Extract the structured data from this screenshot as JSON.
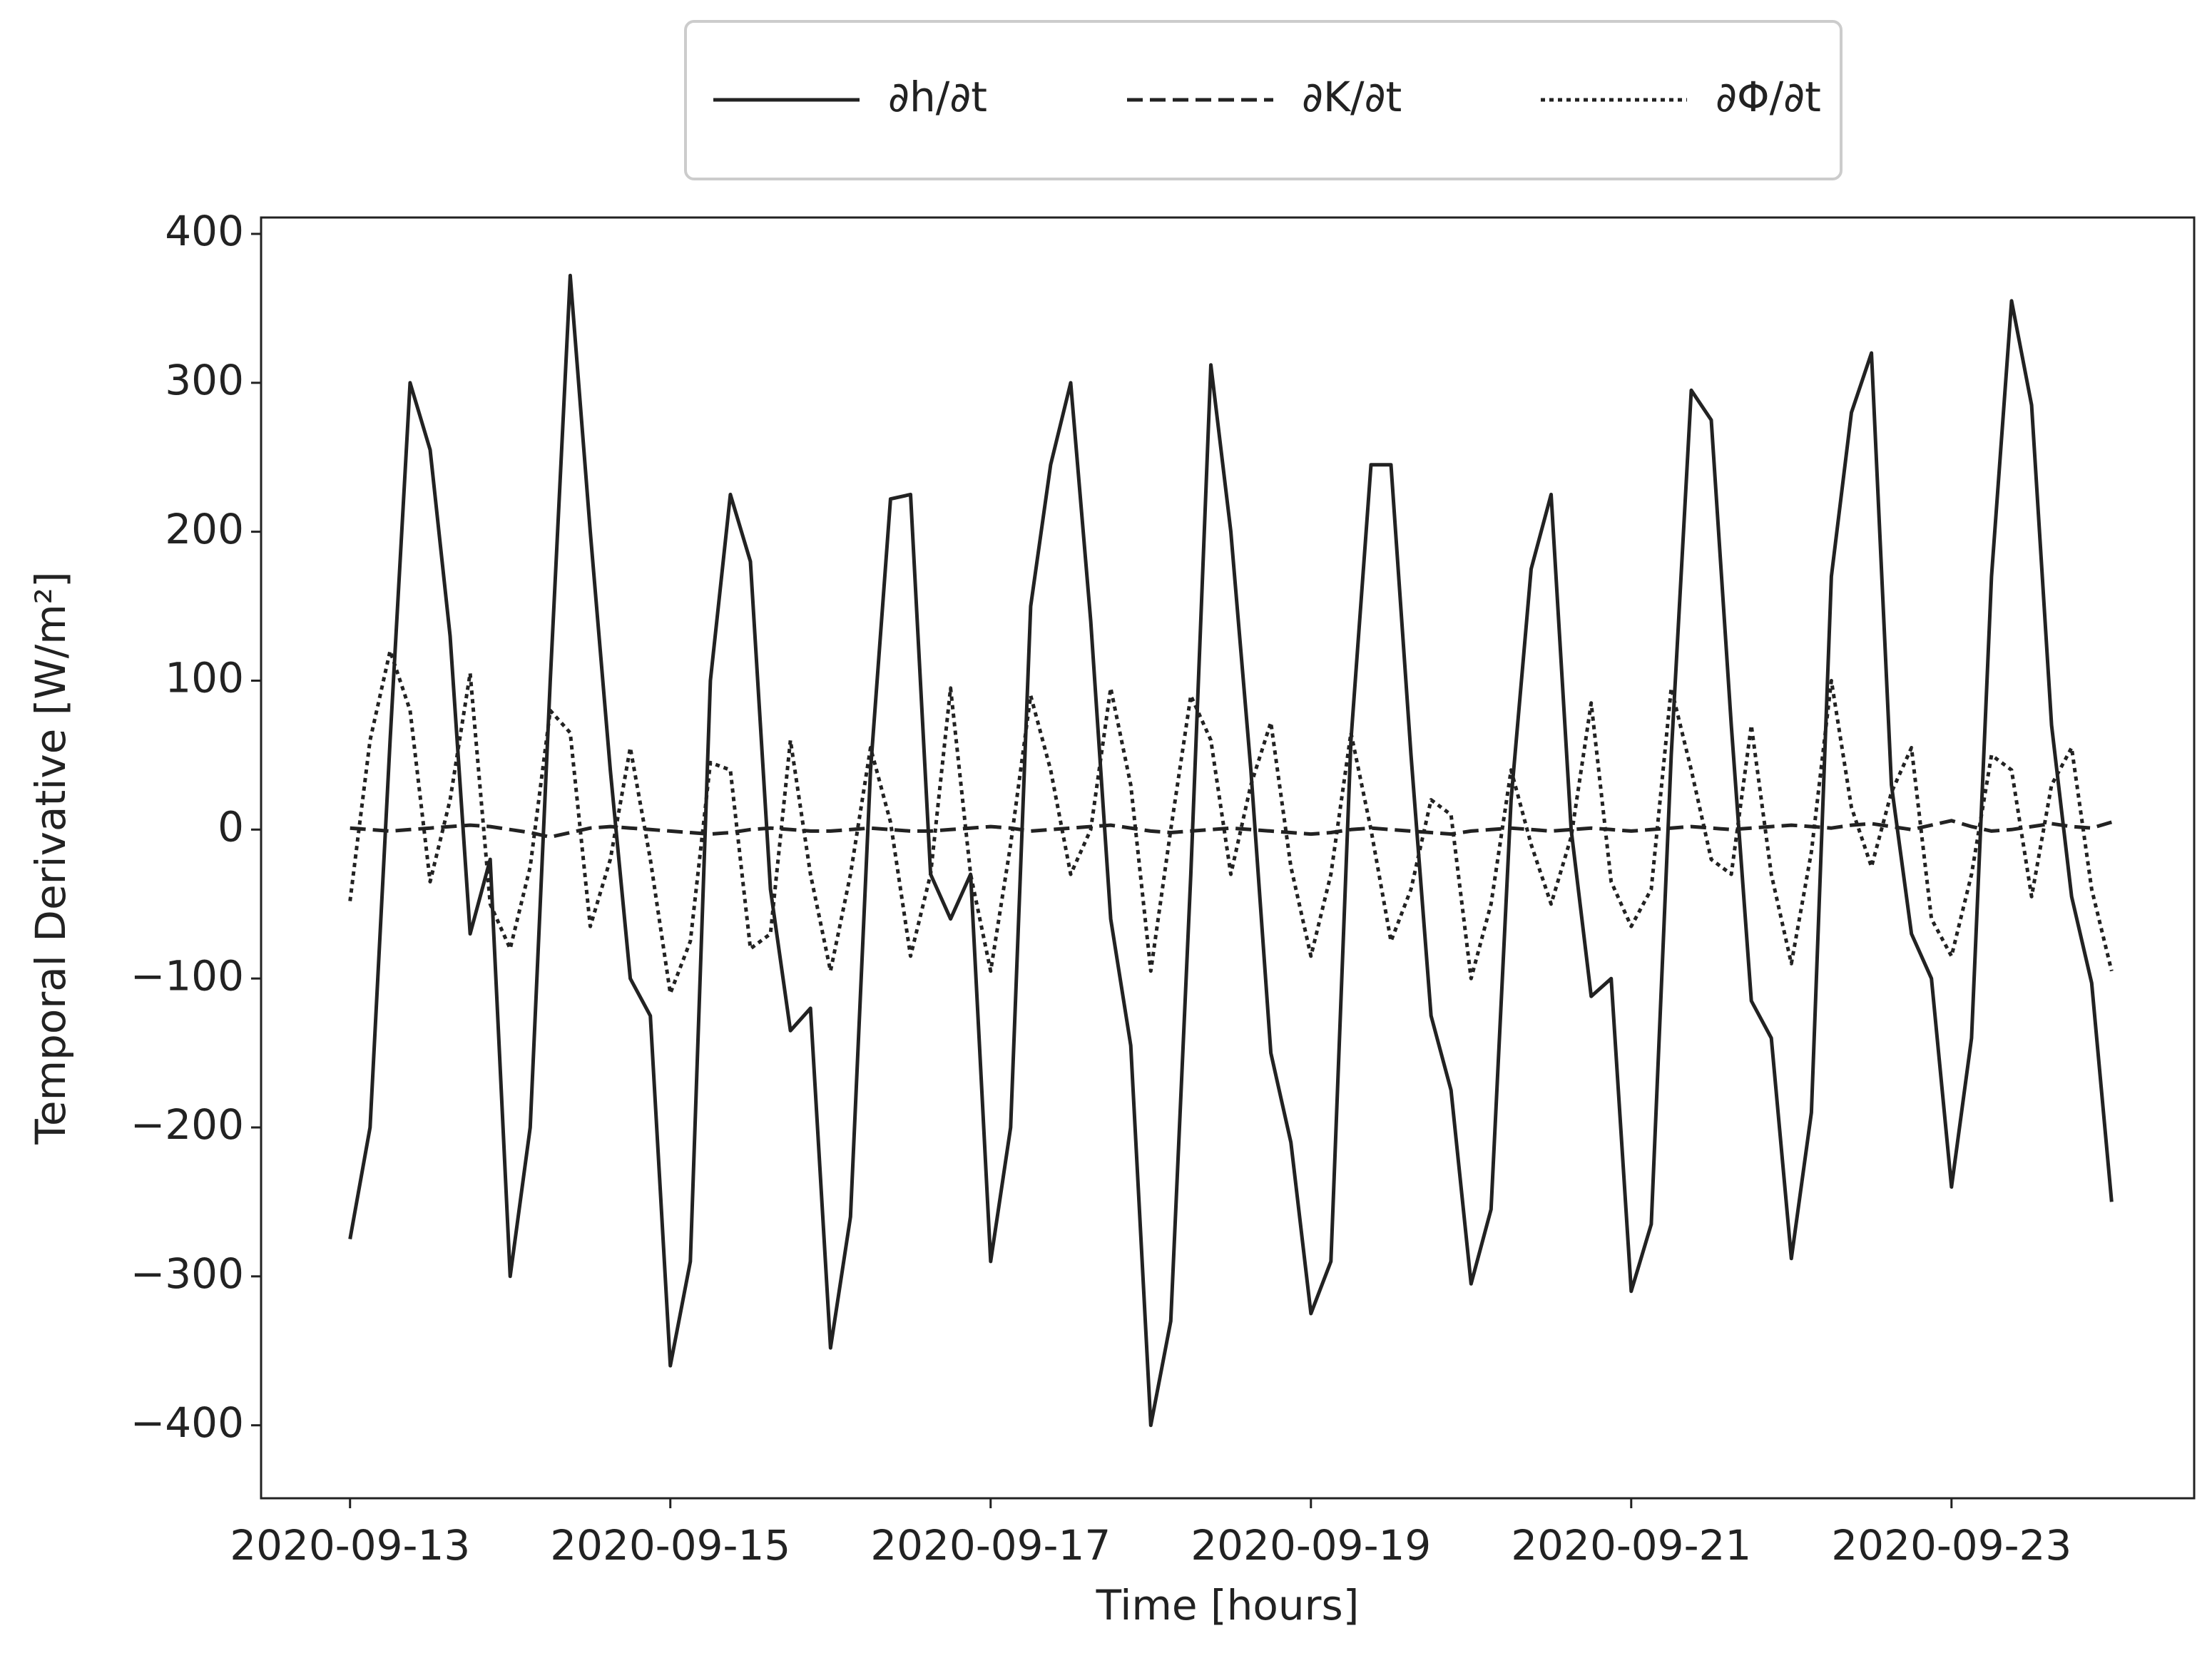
{
  "chart_data": {
    "type": "line",
    "xlabel": "Time [hours]",
    "ylabel": "Temporal Derivative [W/m²]",
    "x": [
      "2020-09-13 00:00",
      "2020-09-13 03:00",
      "2020-09-13 06:00",
      "2020-09-13 09:00",
      "2020-09-13 12:00",
      "2020-09-13 15:00",
      "2020-09-13 18:00",
      "2020-09-13 21:00",
      "2020-09-14 00:00",
      "2020-09-14 03:00",
      "2020-09-14 06:00",
      "2020-09-14 09:00",
      "2020-09-14 12:00",
      "2020-09-14 15:00",
      "2020-09-14 18:00",
      "2020-09-14 21:00",
      "2020-09-15 00:00",
      "2020-09-15 03:00",
      "2020-09-15 06:00",
      "2020-09-15 09:00",
      "2020-09-15 12:00",
      "2020-09-15 15:00",
      "2020-09-15 18:00",
      "2020-09-15 21:00",
      "2020-09-16 00:00",
      "2020-09-16 03:00",
      "2020-09-16 06:00",
      "2020-09-16 09:00",
      "2020-09-16 12:00",
      "2020-09-16 15:00",
      "2020-09-16 18:00",
      "2020-09-16 21:00",
      "2020-09-17 00:00",
      "2020-09-17 03:00",
      "2020-09-17 06:00",
      "2020-09-17 09:00",
      "2020-09-17 12:00",
      "2020-09-17 15:00",
      "2020-09-17 18:00",
      "2020-09-17 21:00",
      "2020-09-18 00:00",
      "2020-09-18 03:00",
      "2020-09-18 06:00",
      "2020-09-18 09:00",
      "2020-09-18 12:00",
      "2020-09-18 15:00",
      "2020-09-18 18:00",
      "2020-09-18 21:00",
      "2020-09-19 00:00",
      "2020-09-19 03:00",
      "2020-09-19 06:00",
      "2020-09-19 09:00",
      "2020-09-19 12:00",
      "2020-09-19 15:00",
      "2020-09-19 18:00",
      "2020-09-19 21:00",
      "2020-09-20 00:00",
      "2020-09-20 03:00",
      "2020-09-20 06:00",
      "2020-09-20 09:00",
      "2020-09-20 12:00",
      "2020-09-20 15:00",
      "2020-09-20 18:00",
      "2020-09-20 21:00",
      "2020-09-21 00:00",
      "2020-09-21 03:00",
      "2020-09-21 06:00",
      "2020-09-21 09:00",
      "2020-09-21 12:00",
      "2020-09-21 15:00",
      "2020-09-21 18:00",
      "2020-09-21 21:00",
      "2020-09-22 00:00",
      "2020-09-22 03:00",
      "2020-09-22 06:00",
      "2020-09-22 09:00",
      "2020-09-22 12:00",
      "2020-09-22 15:00",
      "2020-09-22 18:00",
      "2020-09-22 21:00",
      "2020-09-23 00:00",
      "2020-09-23 03:00",
      "2020-09-23 06:00",
      "2020-09-23 09:00",
      "2020-09-23 12:00",
      "2020-09-23 15:00",
      "2020-09-23 18:00",
      "2020-09-23 21:00",
      "2020-09-24 00:00"
    ],
    "series": [
      {
        "name": "∂h/∂t",
        "color": "#222222",
        "dash": "solid",
        "values": [
          -275,
          -200,
          60,
          300,
          255,
          130,
          -70,
          -20,
          -300,
          -200,
          100,
          372,
          200,
          40,
          -100,
          -125,
          -360,
          -290,
          100,
          225,
          180,
          -40,
          -135,
          -120,
          -348,
          -260,
          40,
          222,
          225,
          -30,
          -60,
          -30,
          -290,
          -200,
          150,
          245,
          300,
          140,
          -60,
          -145,
          -400,
          -330,
          -30,
          312,
          200,
          40,
          -150,
          -210,
          -325,
          -290,
          60,
          245,
          245,
          50,
          -125,
          -175,
          -305,
          -255,
          20,
          175,
          225,
          0,
          -112,
          -100,
          -310,
          -265,
          50,
          295,
          275,
          70,
          -115,
          -140,
          -288,
          -190,
          170,
          280,
          320,
          30,
          -70,
          -100,
          -240,
          -140,
          170,
          355,
          285,
          70,
          -45,
          -103,
          -250
        ]
      },
      {
        "name": "∂K/∂t",
        "color": "#222222",
        "dash": "dashed",
        "values": [
          1,
          0,
          -1,
          0,
          1,
          2,
          3,
          2,
          0,
          -2,
          -5,
          -2,
          1,
          2,
          1,
          0,
          -1,
          -2,
          -3,
          -2,
          0,
          1,
          0,
          -1,
          -1,
          0,
          1,
          0,
          -1,
          -1,
          0,
          1,
          2,
          1,
          -1,
          0,
          1,
          2,
          3,
          1,
          -1,
          -2,
          -1,
          0,
          1,
          0,
          -1,
          -2,
          -3,
          -2,
          0,
          1,
          0,
          -1,
          -2,
          -3,
          -1,
          0,
          1,
          0,
          -1,
          0,
          1,
          0,
          -1,
          0,
          1,
          2,
          1,
          0,
          1,
          2,
          3,
          2,
          1,
          3,
          4,
          2,
          0,
          3,
          6,
          2,
          -1,
          0,
          2,
          4,
          2,
          1,
          5
        ]
      },
      {
        "name": "∂Φ/∂t",
        "color": "#222222",
        "dash": "dotted",
        "values": [
          -48,
          60,
          120,
          80,
          -35,
          20,
          105,
          -50,
          -80,
          -25,
          80,
          65,
          -65,
          -20,
          55,
          -20,
          -110,
          -75,
          45,
          40,
          -80,
          -70,
          60,
          -30,
          -95,
          -30,
          55,
          5,
          -85,
          -30,
          95,
          -30,
          -95,
          -10,
          90,
          40,
          -30,
          0,
          95,
          30,
          -95,
          0,
          90,
          60,
          -30,
          30,
          72,
          -25,
          -85,
          -30,
          65,
          0,
          -75,
          -40,
          20,
          10,
          -100,
          -50,
          40,
          -10,
          -50,
          -5,
          85,
          -35,
          -65,
          -40,
          95,
          40,
          -20,
          -30,
          70,
          -30,
          -90,
          -15,
          100,
          15,
          -25,
          25,
          55,
          -60,
          -85,
          -30,
          50,
          40,
          -45,
          30,
          55,
          -40,
          -95
        ]
      }
    ],
    "xlim": [
      "2020-09-12 10:40",
      "2020-09-24 12:22"
    ],
    "xticks": [
      "2020-09-13",
      "2020-09-15",
      "2020-09-17",
      "2020-09-19",
      "2020-09-21",
      "2020-09-23"
    ],
    "ylim": [
      -449,
      411
    ],
    "yticks": [
      {
        "value": -400,
        "label": "−400"
      },
      {
        "value": -300,
        "label": "−300"
      },
      {
        "value": -200,
        "label": "−200"
      },
      {
        "value": -100,
        "label": "−100"
      },
      0,
      100,
      200,
      300,
      400
    ],
    "grid": false,
    "legend": "top"
  }
}
